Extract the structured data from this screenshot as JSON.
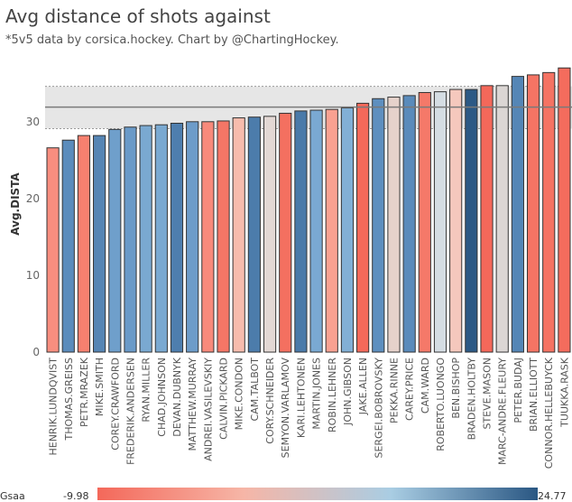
{
  "chart_data": {
    "type": "bar",
    "title": "Avg distance of shots against",
    "subtitle": "*5v5 data by corsica.hockey. Chart by @ChartingHockey.",
    "ylabel": "Avg.DISTA",
    "xlabel": "",
    "ylim": [
      0,
      37.5
    ],
    "yticks": [
      0,
      10,
      20,
      30
    ],
    "reference_line": 31.9,
    "reference_band": [
      29.1,
      34.6
    ],
    "color_legend": {
      "label": "Gsaa",
      "min": -9.98,
      "max": 24.77,
      "min_label": "-9.98",
      "max_label": "24.77",
      "colors": [
        "#f4685a",
        "#f6b6a7",
        "#a9cde3",
        "#2a5783"
      ]
    },
    "categories": [
      "HENRIK.LUNDQVIST",
      "THOMAS.GREISS",
      "PETR.MRAZEK",
      "MIKE.SMITH",
      "COREY.CRAWFORD",
      "FREDERIK.ANDERSEN",
      "RYAN.MILLER",
      "CHAD.JOHNSON",
      "DEVAN.DUBNYK",
      "MATTHEW.MURRAY",
      "ANDREI.VASILEVSKIY",
      "CALVIN.PICKARD",
      "MIKE.CONDON",
      "CAM.TALBOT",
      "CORY.SCHNEIDER",
      "SEMYON.VARLAMOV",
      "KARI.LEHTONEN",
      "MARTIN.JONES",
      "ROBIN.LEHNER",
      "JOHN.GIBSON",
      "JAKE.ALLEN",
      "SERGEI.BOBROVSKY",
      "PEKKA.RINNE",
      "CAREY.PRICE",
      "CAM.WARD",
      "ROBERTO.LUONGO",
      "BEN.BISHOP",
      "BRADEN.HOLTBY",
      "STEVE.MASON",
      "MARC-ANDRE.FLEURY",
      "PETER.BUDAJ",
      "BRIAN.ELLIOTT",
      "CONNOR.HELLEBUYCK",
      "TUUKKA.RASK"
    ],
    "values": [
      26.6,
      27.6,
      28.2,
      28.2,
      29.0,
      29.3,
      29.5,
      29.6,
      29.8,
      30.0,
      30.0,
      30.1,
      30.5,
      30.6,
      30.7,
      31.1,
      31.4,
      31.5,
      31.6,
      31.8,
      32.4,
      33.0,
      33.2,
      33.4,
      33.8,
      33.9,
      34.2,
      34.2,
      34.7,
      34.7,
      35.9,
      36.1,
      36.4,
      37.0
    ],
    "bar_colors": [
      "#f88e7f",
      "#5b8cbc",
      "#f7806f",
      "#5585b4",
      "#6f9fcb",
      "#6a9ac8",
      "#7aa9d1",
      "#7aa9d1",
      "#4e7eae",
      "#6d9cc9",
      "#f88a7b",
      "#f57666",
      "#f7bcad",
      "#4c7cab",
      "#e3d8d4",
      "#f47060",
      "#4a7aa9",
      "#7aa9d2",
      "#f9a191",
      "#82afd5",
      "#f4695a",
      "#5e8fbf",
      "#e6d2cb",
      "#5a8bbb",
      "#f57969",
      "#d5dde3",
      "#f5c8bd",
      "#2c5985",
      "#f4685a",
      "#dbd6d4",
      "#5586b6",
      "#f57464",
      "#f57363",
      "#f46c5d"
    ]
  }
}
